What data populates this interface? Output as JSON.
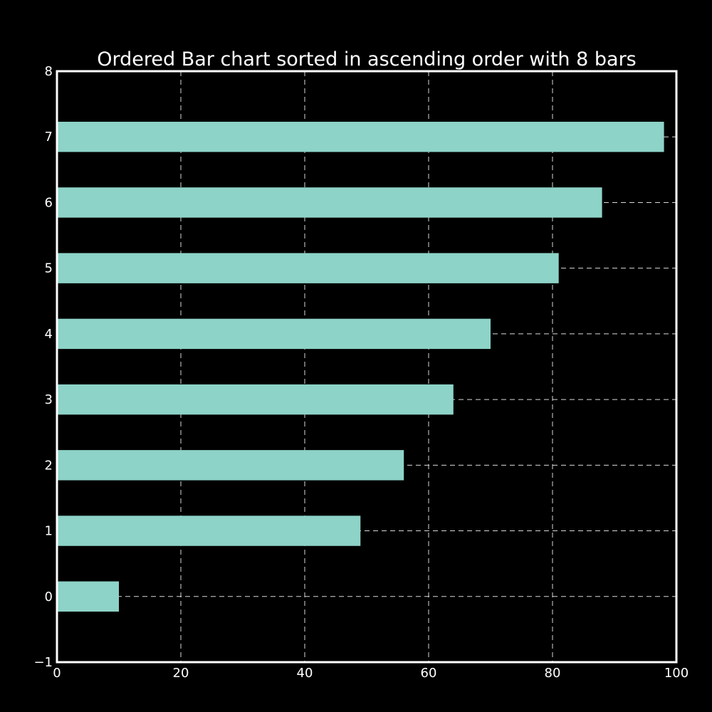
{
  "chart_data": {
    "type": "bar",
    "orientation": "horizontal",
    "title": "Ordered Bar chart sorted in ascending order with 8 bars",
    "xlabel": "",
    "ylabel": "",
    "categories": [
      "0",
      "1",
      "2",
      "3",
      "4",
      "5",
      "6",
      "7"
    ],
    "values": [
      10,
      49,
      56,
      64,
      70,
      81,
      88,
      98
    ],
    "xlim": [
      0,
      100
    ],
    "ylim": [
      -1,
      8
    ],
    "x_ticks": [
      "0",
      "20",
      "40",
      "60",
      "80",
      "100"
    ],
    "y_ticks": [
      "−1",
      "0",
      "1",
      "2",
      "3",
      "4",
      "5",
      "6",
      "7",
      "8"
    ],
    "grid": true,
    "bar_color": "#8dd3c7",
    "background_color": "#000000",
    "axis_color": "#ffffff"
  }
}
